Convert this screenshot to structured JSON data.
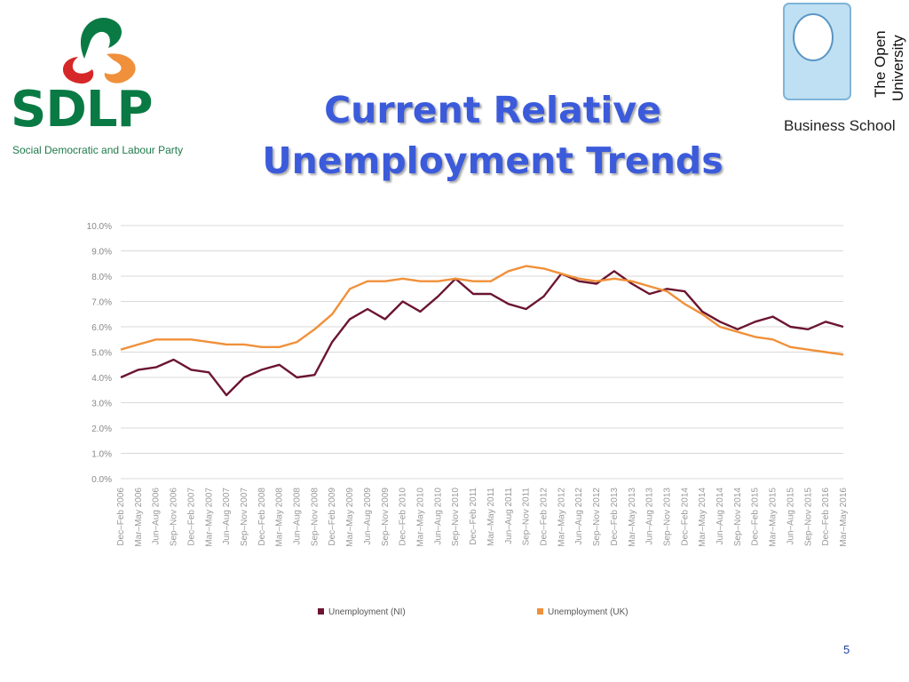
{
  "header": {
    "title_line1": "Current Relative",
    "title_line2": "Unemployment Trends"
  },
  "left_logo": {
    "name": "SDLP",
    "subtitle": "Social Democratic and Labour Party"
  },
  "right_logo": {
    "name_line1": "The Open",
    "name_line2": "University",
    "school": "Business School"
  },
  "page_number": "5",
  "colors": {
    "title": "#3b5bdb",
    "ni_series": "#6b1530",
    "uk_series": "#f0903a",
    "sdlp_green": "#0a7a44"
  },
  "chart_data": {
    "type": "line",
    "title": "",
    "xlabel": "",
    "ylabel": "",
    "ylim": [
      0,
      10
    ],
    "y_ticks": [
      "0.0%",
      "1.0%",
      "2.0%",
      "3.0%",
      "4.0%",
      "5.0%",
      "6.0%",
      "7.0%",
      "8.0%",
      "9.0%",
      "10.0%"
    ],
    "grid": true,
    "legend_position": "bottom",
    "x": [
      "Dec–Feb 2006",
      "Mar–May 2006",
      "Jun–Aug 2006",
      "Sep–Nov 2006",
      "Dec–Feb 2007",
      "Mar–May 2007",
      "Jun–Aug 2007",
      "Sep–Nov 2007",
      "Dec–Feb 2008",
      "Mar–May 2008",
      "Jun–Aug 2008",
      "Sep–Nov 2008",
      "Dec–Feb 2009",
      "Mar–May 2009",
      "Jun–Aug 2009",
      "Sep–Nov 2009",
      "Dec–Feb 2010",
      "Mar–May 2010",
      "Jun–Aug 2010",
      "Sep–Nov 2010",
      "Dec–Feb 2011",
      "Mar–May 2011",
      "Jun–Aug 2011",
      "Sep–Nov 2011",
      "Dec–Feb 2012",
      "Mar–May 2012",
      "Jun–Aug 2012",
      "Sep–Nov 2012",
      "Dec–Feb 2013",
      "Mar–May 2013",
      "Jun–Aug 2013",
      "Sep–Nov 2013",
      "Dec–Feb 2014",
      "Mar–May 2014",
      "Jun–Aug 2014",
      "Sep–Nov 2014",
      "Dec–Feb 2015",
      "Mar–May 2015",
      "Jun–Aug 2015",
      "Sep–Nov 2015",
      "Dec–Feb 2016",
      "Mar–May 2016"
    ],
    "series": [
      {
        "name": "Unemployment (NI)",
        "color": "#6b1530",
        "values": [
          4.0,
          4.3,
          4.4,
          4.7,
          4.3,
          4.2,
          3.3,
          4.0,
          4.3,
          4.5,
          4.0,
          4.1,
          5.4,
          6.3,
          6.7,
          6.3,
          7.0,
          6.6,
          7.2,
          7.9,
          7.3,
          7.3,
          6.9,
          6.7,
          7.2,
          8.1,
          7.8,
          7.7,
          8.2,
          7.7,
          7.3,
          7.5,
          7.4,
          6.6,
          6.2,
          5.9,
          6.2,
          6.4,
          6.0,
          5.9,
          6.2,
          6.0
        ]
      },
      {
        "name": "Unemployment (UK)",
        "color": "#f0903a",
        "values": [
          5.1,
          5.3,
          5.5,
          5.5,
          5.5,
          5.4,
          5.3,
          5.3,
          5.2,
          5.2,
          5.4,
          5.9,
          6.5,
          7.5,
          7.8,
          7.8,
          7.9,
          7.8,
          7.8,
          7.9,
          7.8,
          7.8,
          8.2,
          8.4,
          8.3,
          8.1,
          7.9,
          7.8,
          7.9,
          7.8,
          7.6,
          7.4,
          6.9,
          6.5,
          6.0,
          5.8,
          5.6,
          5.5,
          5.2,
          5.1,
          5.0,
          4.9
        ]
      }
    ]
  }
}
